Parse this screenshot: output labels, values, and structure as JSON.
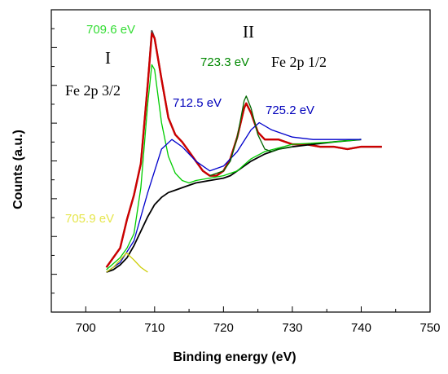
{
  "chart_data": {
    "type": "line",
    "xlabel": "Binding energy (eV)",
    "ylabel": "Counts (a.u.)",
    "xlim": [
      695,
      750
    ],
    "x_ticks": [
      "700",
      "710",
      "720",
      "730",
      "740",
      "750"
    ],
    "y_tick_labels_shown": false,
    "series": [
      {
        "color": "#4d4d4d",
        "x": [
          703,
          704,
          705,
          706,
          707,
          708,
          709,
          709.6,
          710,
          711,
          712,
          713,
          714,
          715,
          716,
          717,
          718,
          719,
          720,
          721,
          722,
          723,
          723.3,
          724,
          725,
          726,
          727,
          728,
          730,
          732,
          734,
          736,
          738,
          740,
          742,
          743
        ],
        "y": [
          0.02,
          0.06,
          0.1,
          0.22,
          0.32,
          0.45,
          0.78,
          1.0,
          0.97,
          0.8,
          0.64,
          0.57,
          0.54,
          0.5,
          0.46,
          0.42,
          0.4,
          0.4,
          0.42,
          0.47,
          0.56,
          0.68,
          0.7,
          0.66,
          0.58,
          0.55,
          0.55,
          0.55,
          0.53,
          0.53,
          0.52,
          0.52,
          0.51,
          0.52,
          0.52,
          0.52
        ]
      },
      {
        "color": "#cc0000",
        "x": [
          703,
          704,
          705,
          706,
          707,
          708,
          709,
          709.6,
          710,
          711,
          712,
          713,
          714,
          715,
          716,
          717,
          718,
          719,
          720,
          721,
          722,
          723,
          723.3,
          724,
          725,
          726,
          727,
          728,
          730,
          732,
          734,
          736,
          738,
          740,
          742,
          743
        ],
        "y": [
          0.02,
          0.06,
          0.1,
          0.22,
          0.32,
          0.45,
          0.78,
          0.99,
          0.97,
          0.8,
          0.64,
          0.57,
          0.54,
          0.5,
          0.46,
          0.42,
          0.4,
          0.4,
          0.42,
          0.47,
          0.56,
          0.68,
          0.7,
          0.66,
          0.58,
          0.55,
          0.55,
          0.55,
          0.53,
          0.53,
          0.52,
          0.52,
          0.51,
          0.52,
          0.52,
          0.52
        ]
      },
      {
        "color": "#000000",
        "x": [
          703,
          704,
          705,
          706,
          707,
          708,
          709,
          710,
          711,
          712,
          713,
          714,
          715,
          716,
          718,
          720,
          721,
          722,
          723,
          724,
          726,
          728,
          730,
          733,
          736,
          740
        ],
        "y": [
          0.0,
          0.01,
          0.03,
          0.06,
          0.11,
          0.17,
          0.23,
          0.28,
          0.31,
          0.33,
          0.34,
          0.35,
          0.36,
          0.37,
          0.38,
          0.39,
          0.4,
          0.42,
          0.44,
          0.46,
          0.49,
          0.51,
          0.52,
          0.53,
          0.54,
          0.55
        ]
      },
      {
        "color": "#00cc00",
        "x": [
          703,
          705,
          706,
          707,
          708,
          709,
          709.6,
          710,
          711,
          712,
          713,
          714,
          715,
          716,
          718,
          720,
          722,
          724,
          726,
          730,
          736,
          740
        ],
        "y": [
          0.01,
          0.06,
          0.1,
          0.16,
          0.35,
          0.7,
          0.86,
          0.84,
          0.62,
          0.48,
          0.41,
          0.38,
          0.37,
          0.38,
          0.39,
          0.4,
          0.42,
          0.47,
          0.5,
          0.53,
          0.54,
          0.55
        ]
      },
      {
        "color": "#0000cc",
        "x": [
          703,
          705,
          707,
          709,
          711,
          712.5,
          714,
          716,
          718,
          720,
          722,
          724,
          725.2,
          727,
          730,
          733,
          736,
          740
        ],
        "y": [
          0.0,
          0.04,
          0.13,
          0.33,
          0.51,
          0.55,
          0.52,
          0.46,
          0.42,
          0.44,
          0.5,
          0.59,
          0.62,
          0.59,
          0.56,
          0.55,
          0.55,
          0.55
        ]
      },
      {
        "color": "#006600",
        "x": [
          718,
          720,
          721,
          722,
          723,
          723.3,
          724,
          725,
          726,
          727,
          728,
          730
        ],
        "y": [
          0.4,
          0.42,
          0.46,
          0.56,
          0.71,
          0.73,
          0.68,
          0.57,
          0.51,
          0.5,
          0.51,
          0.52
        ]
      },
      {
        "color": "#cccc00",
        "x": [
          703,
          704,
          705,
          705.9,
          707,
          708,
          709
        ],
        "y": [
          0.0,
          0.02,
          0.05,
          0.08,
          0.05,
          0.02,
          0.0
        ]
      }
    ],
    "annotations": [
      {
        "text": "709.6 eV",
        "color": "#33dd33"
      },
      {
        "text": "I",
        "color": "#000000"
      },
      {
        "text": "II",
        "color": "#000000"
      },
      {
        "text": "723.3 eV",
        "color": "#008800"
      },
      {
        "text": "Fe 2p 1/2",
        "color": "#000000"
      },
      {
        "text": "Fe 2p 3/2",
        "color": "#000000"
      },
      {
        "text": "712.5 eV",
        "color": "#0000bb"
      },
      {
        "text": "725.2 eV",
        "color": "#0000bb"
      },
      {
        "text": "705.9 eV",
        "color": "#e6e64d"
      }
    ],
    "grid": false
  }
}
